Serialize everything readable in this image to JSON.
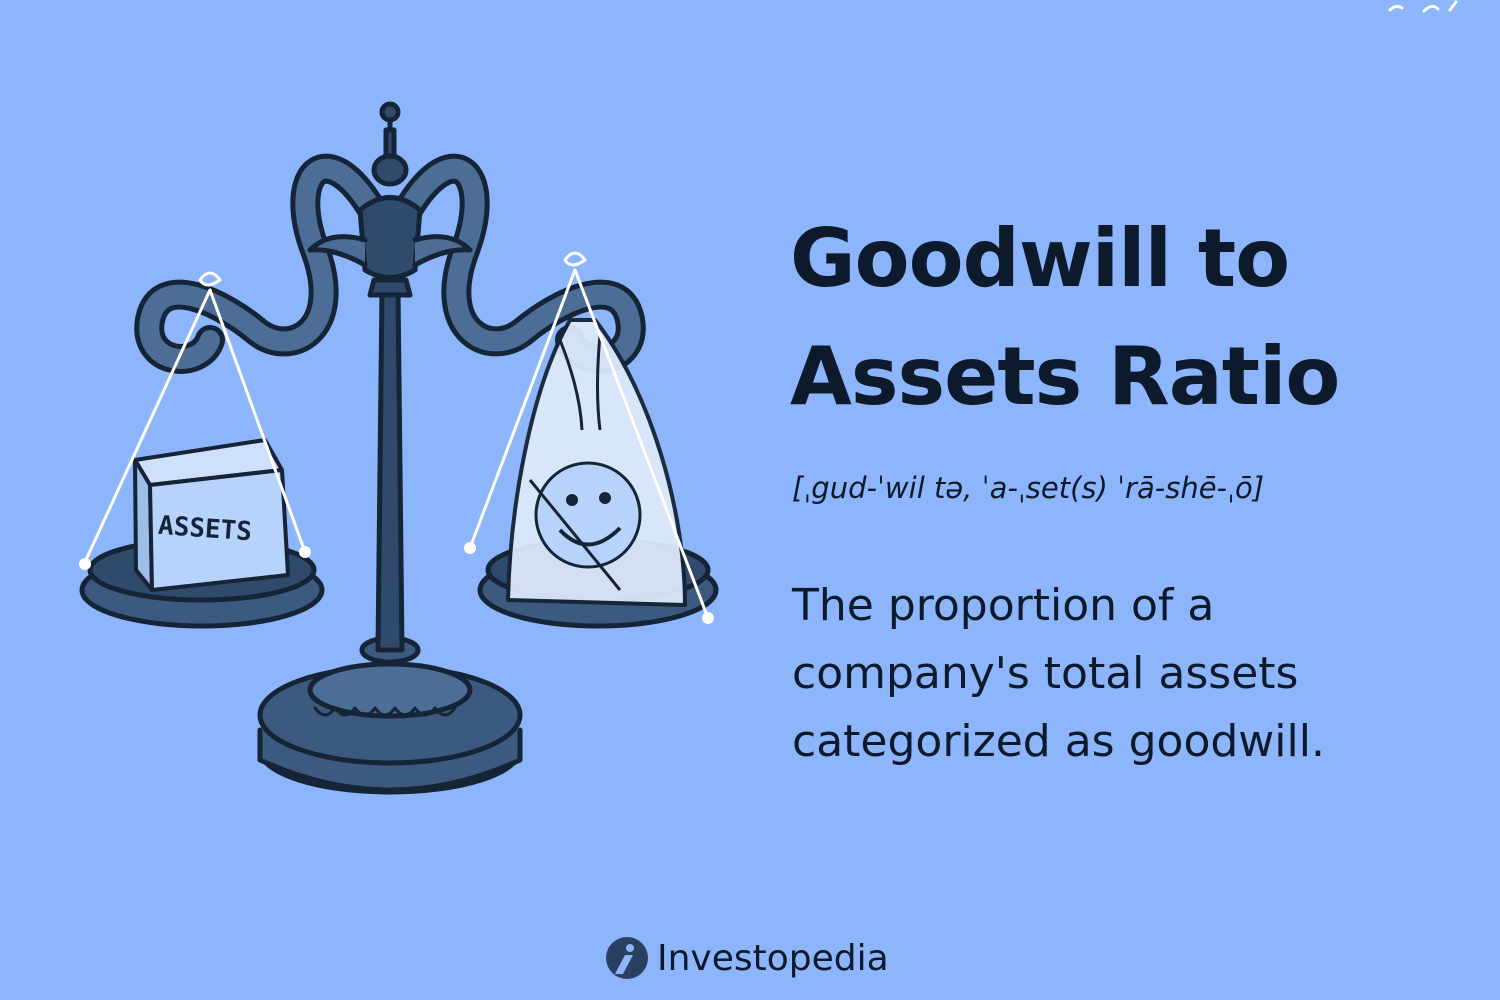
{
  "colors": {
    "background": "#8cb5fb",
    "text": "#0d1a2b",
    "scale_dark": "#2f4a6b",
    "scale_mid": "#4b6d96",
    "scale_light": "#6f92bd",
    "box_fill": "#b8d3fb",
    "bag_fill": "#dce9fc"
  },
  "illustration": {
    "box_label": "ASSETS",
    "icons": [
      "balance-scale-icon",
      "assets-box-icon",
      "smiley-bag-icon"
    ]
  },
  "title": {
    "line1": "Goodwill to",
    "line2": "Assets Ratio"
  },
  "pronunciation": "[ˌgud-ˈwil tə, ˈa-ˌset(s) ˈrā-shē-ˌō]",
  "definition": {
    "line1": "The proportion of a",
    "line2": "company's total assets",
    "line3": "categorized as goodwill."
  },
  "brand": {
    "name": "Investopedia",
    "icon": "investopedia-logo-icon"
  }
}
